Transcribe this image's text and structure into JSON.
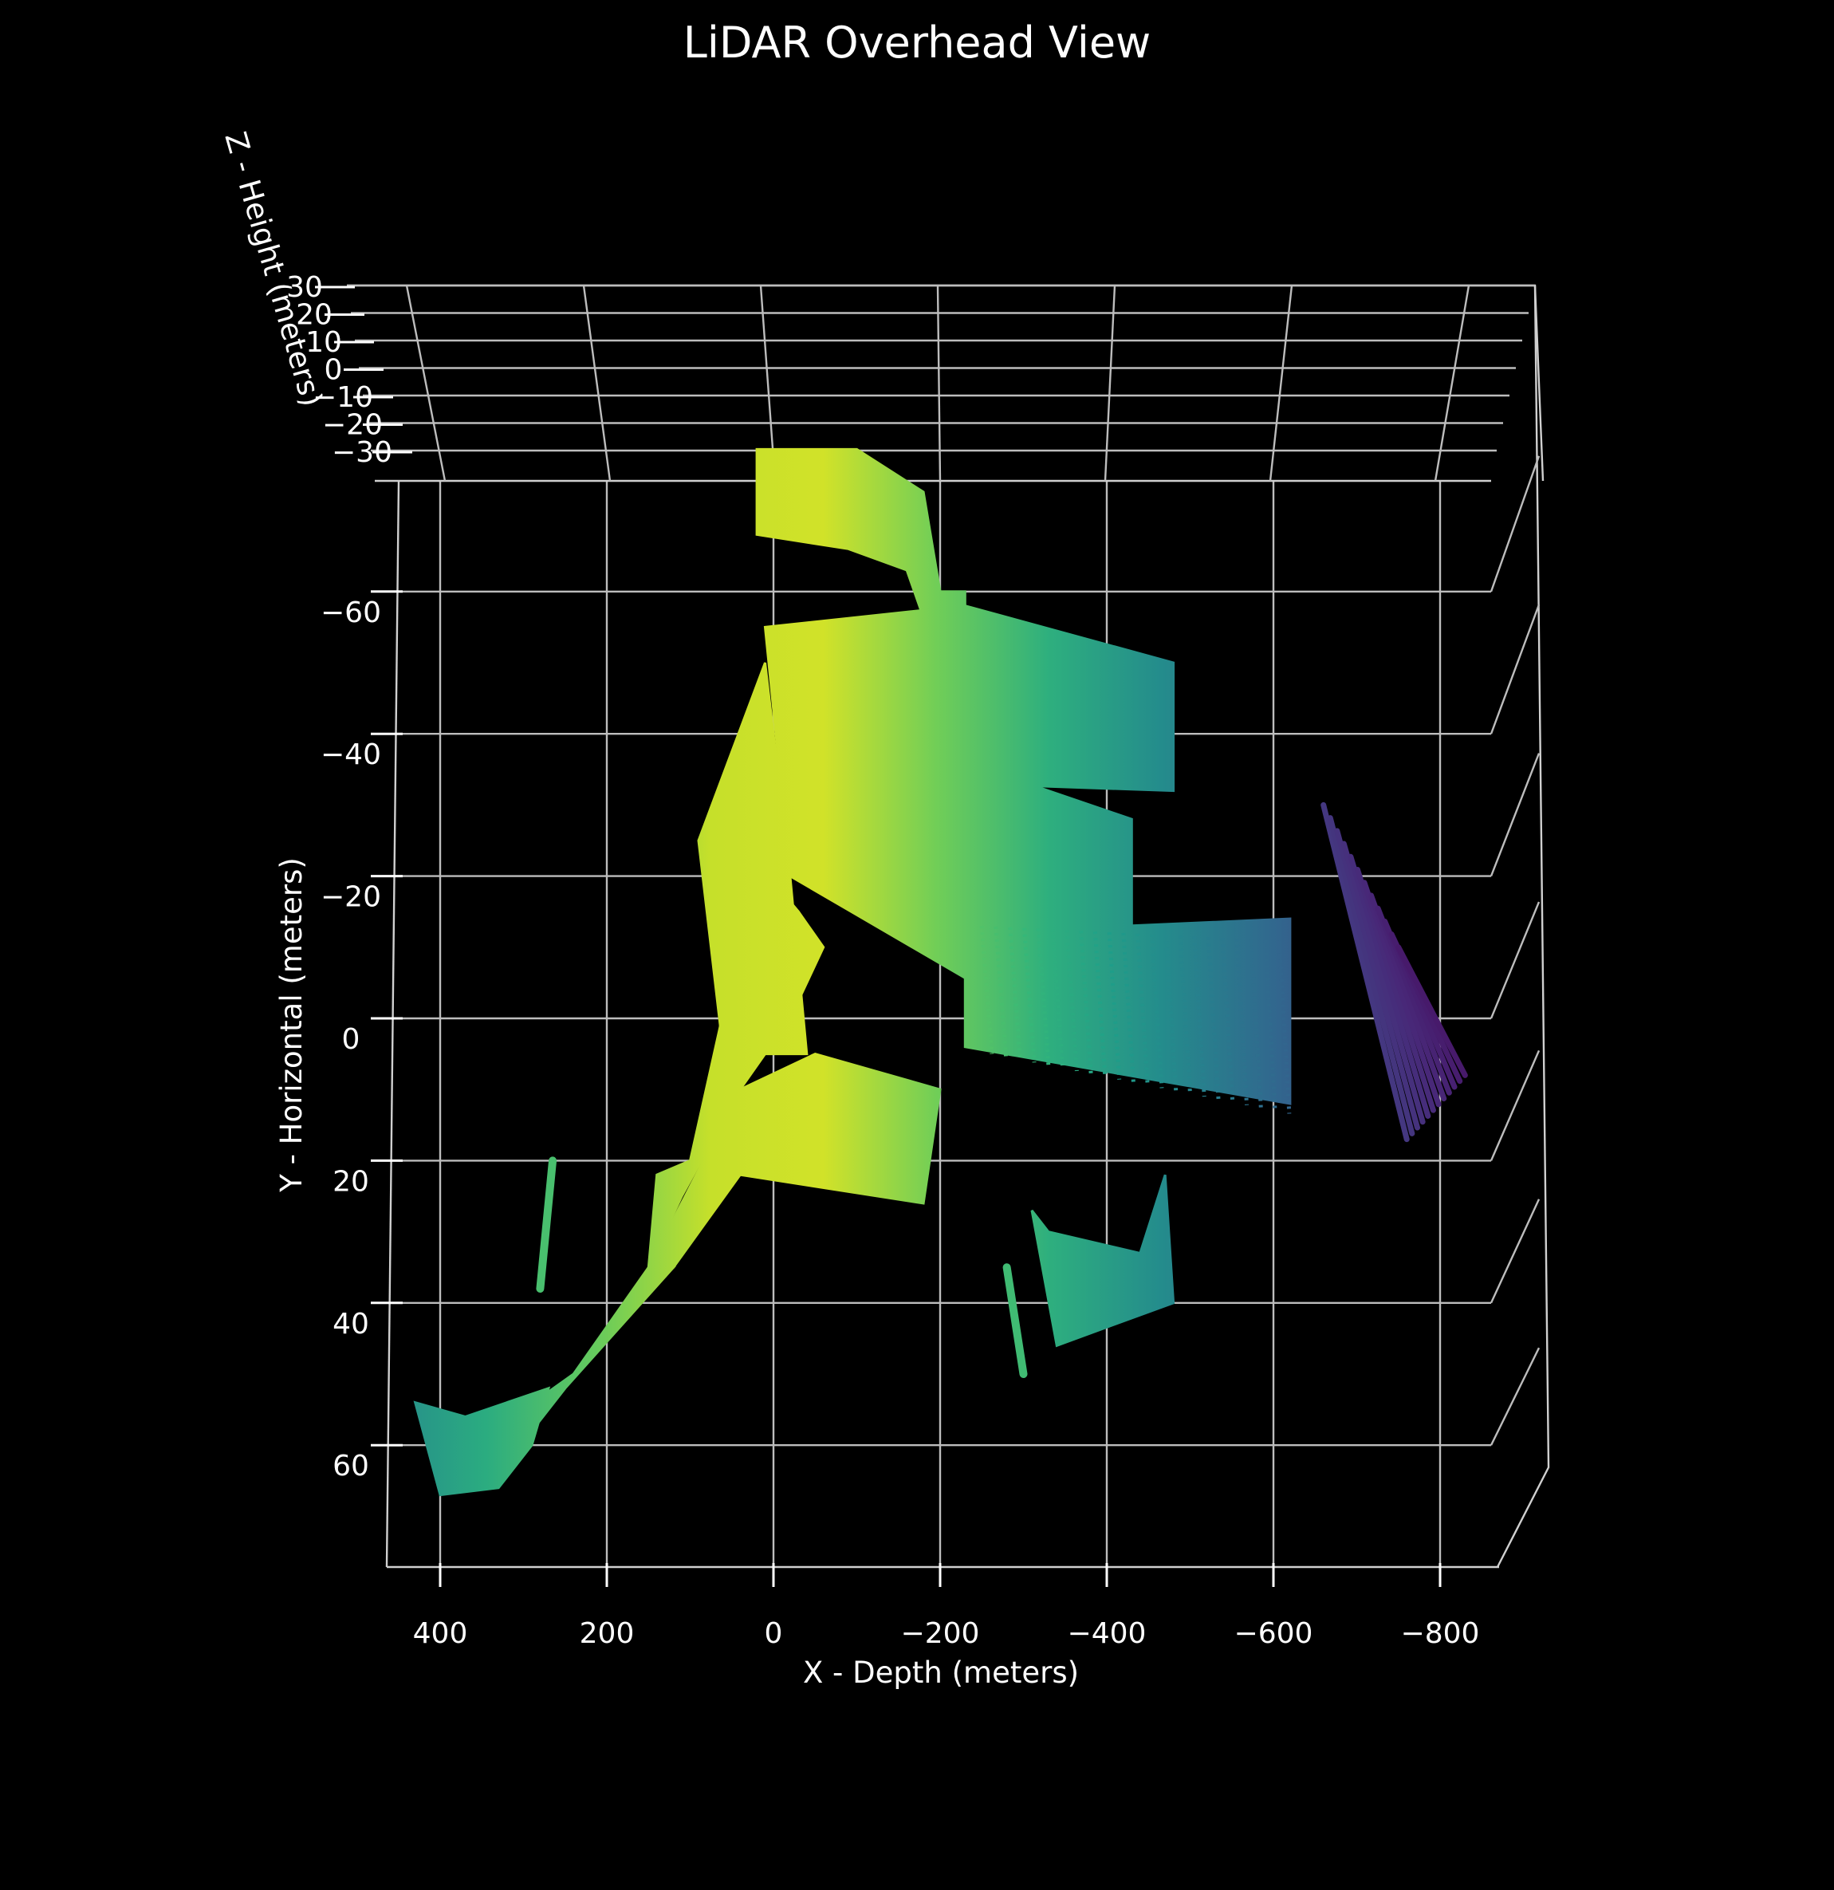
{
  "chart_data": {
    "type": "scatter",
    "projection": "3d-overhead",
    "title": "LiDAR Overhead View",
    "xlabel": "X - Depth (meters)",
    "ylabel": "Y - Horizontal (meters)",
    "zlabel": "Z - Height (meters)",
    "xlim": [
      480,
      -870
    ],
    "ylim": [
      -80,
      80
    ],
    "zlim": [
      -35,
      35
    ],
    "xticks": [
      400,
      200,
      0,
      -200,
      -400,
      -600,
      -800
    ],
    "xtick_labels": [
      "400",
      "200",
      "0",
      "−200",
      "−400",
      "−600",
      "−800"
    ],
    "yticks": [
      -60,
      -40,
      -20,
      0,
      20,
      40,
      60
    ],
    "ytick_labels": [
      "−60",
      "−40",
      "−20",
      "0",
      "20",
      "40",
      "60"
    ],
    "zticks": [
      30,
      20,
      10,
      0,
      -10,
      -20,
      -30
    ],
    "ztick_labels": [
      "30",
      "20",
      "10",
      "0",
      "−10",
      "−20",
      "−30"
    ],
    "colormap": "viridis",
    "color_by": "x (depth)",
    "grid": true,
    "background": "#000000",
    "regions": [
      {
        "name": "upper-hook",
        "x": [
          -200,
          -180,
          -100,
          20,
          20,
          -90,
          -160,
          -190,
          -230,
          -230,
          -200
        ],
        "y": [
          -60,
          -74,
          -80,
          -80,
          -68,
          -66,
          -63,
          -53,
          -42,
          -60,
          -60
        ]
      },
      {
        "name": "central-branch",
        "x": [
          10,
          -230,
          -480,
          -480,
          -230,
          -240,
          -20,
          10
        ],
        "y": [
          -55,
          -58,
          -50,
          -32,
          -33,
          -5,
          -20,
          -55
        ]
      },
      {
        "name": "mid-wedge",
        "x": [
          -20,
          10,
          90,
          60,
          -40
        ],
        "y": [
          -20,
          -50,
          -25,
          5,
          5
        ]
      },
      {
        "name": "main-body",
        "x": [
          100,
          20,
          -30,
          -60,
          -20,
          10,
          40,
          110,
          150,
          140,
          100
        ],
        "y": [
          20,
          -22,
          -15,
          -10,
          0,
          5,
          10,
          25,
          35,
          22,
          20
        ]
      },
      {
        "name": "lower-arm",
        "x": [
          150,
          40,
          -50,
          -200,
          -180,
          40,
          120,
          150
        ],
        "y": [
          35,
          10,
          5,
          10,
          26,
          22,
          35,
          35
        ]
      },
      {
        "name": "lower-tail",
        "x": [
          360,
          240,
          150,
          120,
          250,
          330,
          360
        ],
        "y": [
          60,
          50,
          35,
          35,
          52,
          64,
          60
        ]
      },
      {
        "name": "bottom-left-fan",
        "x": [
          430,
          400,
          330,
          290,
          270,
          370,
          430
        ],
        "y": [
          54,
          67,
          66,
          60,
          52,
          56,
          54
        ]
      },
      {
        "name": "lower-right-fan",
        "x": [
          -310,
          -340,
          -480,
          -470,
          -440,
          -330,
          -310
        ],
        "y": [
          27,
          46,
          40,
          22,
          33,
          30,
          27
        ]
      },
      {
        "name": "mid-right-stripes",
        "x": [
          -230,
          -430,
          -430,
          -230
        ],
        "y": [
          -36,
          -28,
          -12,
          -12
        ]
      },
      {
        "name": "right-streak-field",
        "x": [
          -230,
          -620,
          -620,
          -230
        ],
        "y": [
          -12,
          -14,
          12,
          4
        ]
      }
    ],
    "stripes": [
      {
        "name": "right-fan-strokes",
        "count": 12,
        "x_start": [
          -660,
          -760
        ],
        "y_start": [
          -30,
          17
        ],
        "x_end": [
          -750,
          -830
        ],
        "y_end": [
          -10,
          8
        ]
      },
      {
        "name": "left-bars",
        "x": [
          265,
          280
        ],
        "y": [
          20,
          38
        ]
      },
      {
        "name": "lower-sticks",
        "x": [
          -280,
          -300
        ],
        "y": [
          35,
          50
        ]
      }
    ]
  }
}
